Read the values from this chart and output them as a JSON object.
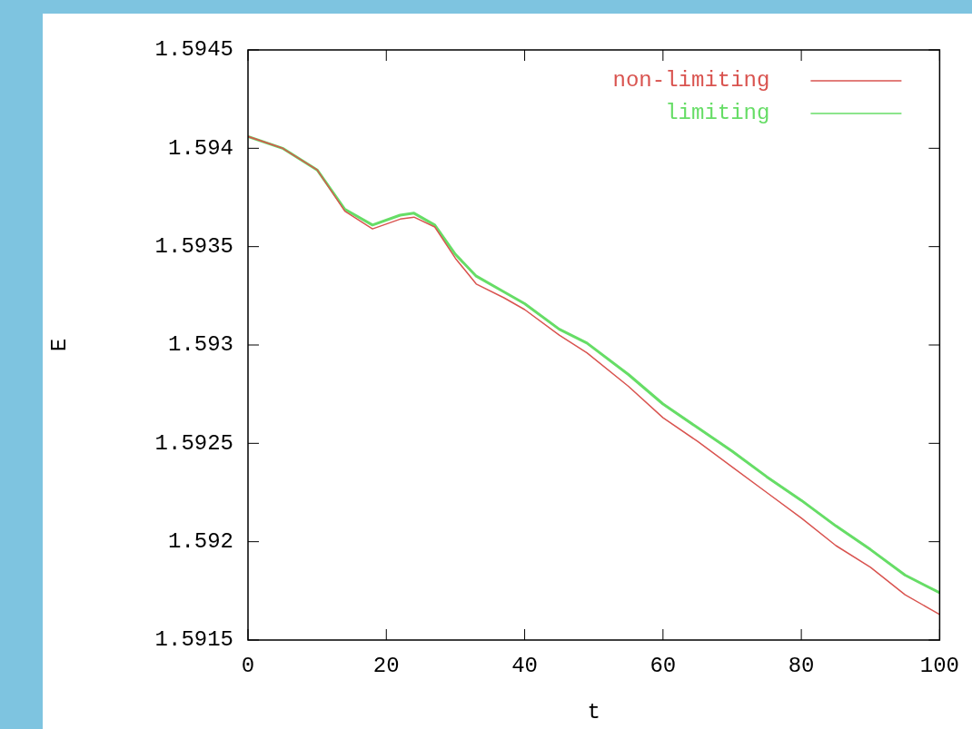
{
  "chart_data": {
    "type": "line",
    "xlabel": "t",
    "ylabel": "E",
    "xlim": [
      0,
      100
    ],
    "xticks": [
      0,
      20,
      40,
      60,
      80,
      100
    ],
    "ylim": [
      1.5915,
      1.5945
    ],
    "yticks": [
      1.5915,
      1.592,
      1.5925,
      1.593,
      1.5935,
      1.594,
      1.5945
    ],
    "legend": "top right",
    "marker": "none",
    "line_style": "solid",
    "series": [
      {
        "name": "non-limiting",
        "color": "#d9534f",
        "x": [
          0,
          5,
          10,
          14,
          18,
          22,
          24,
          27,
          30,
          33,
          37,
          40,
          45,
          49,
          55,
          60,
          65,
          70,
          75,
          80,
          85,
          90,
          95,
          100
        ],
        "values": [
          1.59406,
          1.594,
          1.59389,
          1.59368,
          1.59359,
          1.59364,
          1.59365,
          1.5936,
          1.59344,
          1.59331,
          1.59324,
          1.59318,
          1.59305,
          1.59296,
          1.59279,
          1.59263,
          1.59251,
          1.59238,
          1.59225,
          1.59212,
          1.59198,
          1.59187,
          1.59173,
          1.59163
        ]
      },
      {
        "name": "limiting",
        "color": "#66dd66",
        "x": [
          0,
          5,
          10,
          14,
          18,
          22,
          24,
          27,
          30,
          33,
          37,
          40,
          45,
          49,
          55,
          60,
          65,
          70,
          75,
          80,
          85,
          90,
          95,
          100
        ],
        "values": [
          1.59406,
          1.594,
          1.59389,
          1.59369,
          1.59361,
          1.59366,
          1.59367,
          1.59361,
          1.59346,
          1.59335,
          1.59327,
          1.59321,
          1.59308,
          1.59301,
          1.59285,
          1.5927,
          1.59258,
          1.59246,
          1.59233,
          1.59221,
          1.59208,
          1.59196,
          1.59183,
          1.59174
        ]
      }
    ]
  }
}
